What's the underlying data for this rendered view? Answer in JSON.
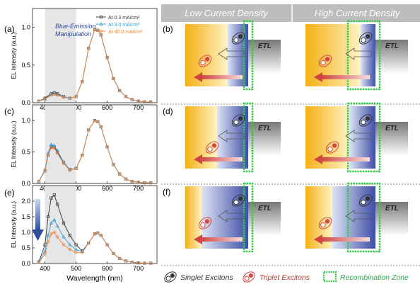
{
  "header": {
    "low_label": "Low Current Density",
    "high_label": "High Current Density",
    "bg_color": "#bdbdbd"
  },
  "panel_labels": [
    "(a)",
    "(b)",
    "(c)",
    "(d)",
    "(e)",
    "(f)"
  ],
  "annotation": {
    "blue_emission": "Blue-Emission",
    "manipulation": "Manipulation"
  },
  "etl_label": "ETL",
  "legend_bottom": {
    "singlet": "Singlet Excitons",
    "triplet": "Triplet Excitons",
    "recombination": "Recombination Zone"
  },
  "colors": {
    "orange": "#f5b61a",
    "blue": "#3f4fa6",
    "green_zone": "#35c94a",
    "red_arrow": "#d9534f",
    "series_black": "#333333",
    "series_blue": "#3a9ad9",
    "series_orange": "#e8843c"
  },
  "chart_data": [
    {
      "type": "line",
      "panel": "(a)",
      "xlabel": "",
      "ylabel": "EL Intensity (a.u.)",
      "xlim": [
        360,
        760
      ],
      "ylim": [
        0,
        1.25
      ],
      "xticks": [
        400,
        500,
        600,
        700
      ],
      "yticks": [
        0.0,
        0.5,
        1.0
      ],
      "shaded_range": [
        400,
        500
      ],
      "x": [
        380,
        400,
        420,
        430,
        440,
        460,
        480,
        500,
        520,
        540,
        560,
        570,
        580,
        600,
        620,
        640,
        660,
        680,
        700,
        720,
        740
      ],
      "series": [
        {
          "name": "At 0.3 mA/cm²",
          "values": [
            0.02,
            0.06,
            0.12,
            0.13,
            0.12,
            0.08,
            0.06,
            0.08,
            0.28,
            0.72,
            0.97,
            0.96,
            0.9,
            0.6,
            0.32,
            0.16,
            0.08,
            0.04,
            0.02,
            0.01,
            0.01
          ]
        },
        {
          "name": "At 3.0 mA/cm²",
          "values": [
            0.02,
            0.05,
            0.11,
            0.12,
            0.11,
            0.08,
            0.06,
            0.08,
            0.28,
            0.72,
            0.97,
            0.96,
            0.9,
            0.6,
            0.32,
            0.16,
            0.08,
            0.04,
            0.02,
            0.01,
            0.01
          ]
        },
        {
          "name": "At 40.0 mA/cm²",
          "values": [
            0.02,
            0.05,
            0.1,
            0.11,
            0.1,
            0.07,
            0.06,
            0.08,
            0.28,
            0.72,
            0.97,
            0.96,
            0.9,
            0.6,
            0.32,
            0.16,
            0.08,
            0.04,
            0.02,
            0.01,
            0.01
          ]
        }
      ]
    },
    {
      "type": "line",
      "panel": "(c)",
      "xlabel": "",
      "ylabel": "EL Intensity (a.u.)",
      "xlim": [
        360,
        760
      ],
      "ylim": [
        0,
        1.25
      ],
      "xticks": [
        400,
        500,
        600,
        700
      ],
      "yticks": [
        0.0,
        0.5,
        1.0
      ],
      "shaded_range": [
        400,
        500
      ],
      "x": [
        380,
        400,
        410,
        420,
        430,
        440,
        460,
        480,
        500,
        520,
        540,
        560,
        570,
        580,
        600,
        620,
        640,
        660,
        680,
        700,
        720,
        740
      ],
      "series": [
        {
          "name": "At 0.3 mA/cm²",
          "values": [
            0.03,
            0.2,
            0.45,
            0.58,
            0.58,
            0.5,
            0.33,
            0.22,
            0.24,
            0.45,
            0.85,
            1.0,
            0.98,
            0.9,
            0.58,
            0.3,
            0.15,
            0.07,
            0.03,
            0.02,
            0.01,
            0.01
          ]
        },
        {
          "name": "At 3.0 mA/cm²",
          "values": [
            0.03,
            0.22,
            0.48,
            0.62,
            0.6,
            0.52,
            0.34,
            0.22,
            0.24,
            0.45,
            0.85,
            1.0,
            0.98,
            0.9,
            0.58,
            0.3,
            0.15,
            0.07,
            0.03,
            0.02,
            0.01,
            0.01
          ]
        },
        {
          "name": "At 40.0 mA/cm²",
          "values": [
            0.03,
            0.2,
            0.45,
            0.57,
            0.56,
            0.48,
            0.32,
            0.21,
            0.24,
            0.45,
            0.85,
            1.0,
            0.98,
            0.9,
            0.58,
            0.3,
            0.15,
            0.07,
            0.03,
            0.02,
            0.01,
            0.01
          ]
        }
      ]
    },
    {
      "type": "line",
      "panel": "(e)",
      "xlabel": "Wavelength (nm)",
      "ylabel": "EL Intensity (a.u.)",
      "xlim": [
        360,
        760
      ],
      "ylim": [
        0,
        2.5
      ],
      "xticks": [
        400,
        500,
        600,
        700
      ],
      "yticks": [
        0.0,
        0.5,
        1.0,
        1.5,
        2.0
      ],
      "shaded_range": [
        400,
        500
      ],
      "x": [
        380,
        400,
        410,
        420,
        430,
        440,
        460,
        480,
        500,
        520,
        540,
        560,
        570,
        580,
        600,
        620,
        640,
        660,
        680,
        700,
        720,
        740
      ],
      "series": [
        {
          "name": "At 0.3 mA/cm²",
          "values": [
            0.05,
            0.6,
            1.5,
            2.1,
            2.2,
            1.9,
            1.3,
            0.9,
            0.6,
            0.4,
            0.65,
            0.95,
            0.98,
            0.9,
            0.6,
            0.32,
            0.16,
            0.08,
            0.04,
            0.02,
            0.01,
            0.01
          ]
        },
        {
          "name": "At 3.0 mA/cm²",
          "values": [
            0.04,
            0.4,
            0.9,
            1.3,
            1.4,
            1.2,
            0.85,
            0.6,
            0.45,
            0.38,
            0.65,
            0.95,
            0.98,
            0.9,
            0.6,
            0.32,
            0.16,
            0.08,
            0.04,
            0.02,
            0.01,
            0.01
          ]
        },
        {
          "name": "At 40.0 mA/cm²",
          "values": [
            0.03,
            0.3,
            0.7,
            0.95,
            1.0,
            0.85,
            0.6,
            0.45,
            0.35,
            0.35,
            0.65,
            0.95,
            0.98,
            0.9,
            0.6,
            0.32,
            0.16,
            0.08,
            0.04,
            0.02,
            0.01,
            0.01
          ]
        }
      ]
    }
  ]
}
